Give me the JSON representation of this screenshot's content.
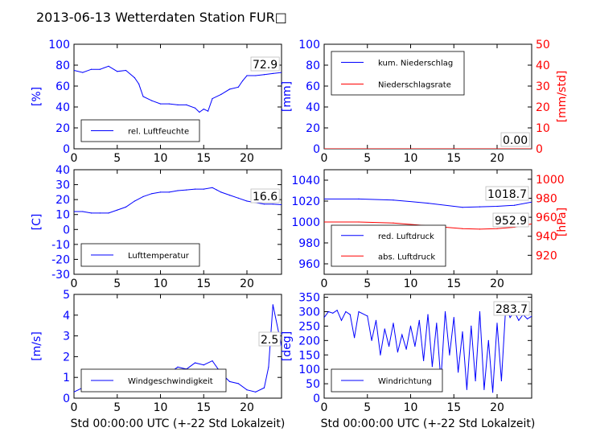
{
  "figure_title": "2013-06-13 Wetterdaten Station FUR□",
  "colors": {
    "primary": "#0000ff",
    "secondary": "#ff0000",
    "text": "#000000"
  },
  "chart_data": [
    {
      "type": "line",
      "panel": "top-left",
      "xlim": [
        0,
        24
      ],
      "xticks": [
        0,
        5,
        10,
        15,
        20
      ],
      "ylim": [
        0,
        100
      ],
      "yticks": [
        0,
        20,
        40,
        60,
        80,
        100
      ],
      "ylabel": "[%]",
      "xlabel": "",
      "legend": "lower-left",
      "annotation": "72.9",
      "series": [
        {
          "name": "rel. Luftfeuchte",
          "axis": "left",
          "color": "#0000ff",
          "x": [
            0,
            1,
            2,
            3,
            4,
            5,
            6,
            7,
            7.5,
            8,
            9,
            10,
            11,
            12,
            13,
            14,
            14.5,
            15,
            15.5,
            16,
            17,
            18,
            19,
            19.5,
            20,
            21,
            22,
            23,
            24
          ],
          "y": [
            75,
            73,
            76,
            76,
            79,
            74,
            75,
            68,
            62,
            50,
            46,
            43,
            43,
            42,
            42,
            39,
            35,
            38,
            36,
            48,
            52,
            57,
            59,
            65,
            70,
            70,
            71,
            72,
            73
          ]
        }
      ]
    },
    {
      "type": "line",
      "panel": "top-right",
      "xlim": [
        0,
        24
      ],
      "xticks": [
        0,
        5,
        10,
        15,
        20
      ],
      "ylim": [
        0,
        100
      ],
      "yticks": [
        0,
        20,
        40,
        60,
        80,
        100
      ],
      "ylabel": "[mm]",
      "y2lim": [
        0,
        50
      ],
      "y2ticks": [
        0,
        10,
        20,
        30,
        40,
        50
      ],
      "y2label": "[mm/std]",
      "xlabel": "",
      "legend": "upper-left",
      "annotation": "0.00",
      "series": [
        {
          "name": "kum. Niederschlag",
          "axis": "left",
          "color": "#0000ff",
          "x": [
            0,
            24
          ],
          "y": [
            0,
            0
          ]
        },
        {
          "name": "Niederschlagsrate",
          "axis": "right",
          "color": "#ff0000",
          "x": [
            0,
            24
          ],
          "y": [
            0,
            0
          ]
        }
      ]
    },
    {
      "type": "line",
      "panel": "middle-left",
      "xlim": [
        0,
        24
      ],
      "xticks": [
        0,
        5,
        10,
        15,
        20
      ],
      "ylim": [
        -30,
        40
      ],
      "yticks": [
        -30,
        -20,
        -10,
        0,
        10,
        20,
        30,
        40
      ],
      "ylabel": "[C]",
      "xlabel": "",
      "legend": "lower-left",
      "annotation": "16.6",
      "series": [
        {
          "name": "Lufttemperatur",
          "axis": "left",
          "color": "#0000ff",
          "x": [
            0,
            1,
            2,
            3,
            4,
            5,
            6,
            7,
            8,
            9,
            10,
            11,
            12,
            13,
            14,
            15,
            16,
            16.5,
            17,
            18,
            19,
            20,
            21,
            22,
            23,
            24
          ],
          "y": [
            12,
            12,
            11,
            11,
            11,
            13,
            15,
            19,
            22,
            24,
            25,
            25,
            26,
            26.5,
            27,
            27,
            28,
            26.5,
            25,
            23,
            21,
            19,
            18,
            17,
            17,
            16.6
          ]
        }
      ]
    },
    {
      "type": "line",
      "panel": "middle-right",
      "xlim": [
        0,
        24
      ],
      "xticks": [
        0,
        5,
        10,
        15,
        20
      ],
      "ylim": [
        950,
        1050
      ],
      "yticks": [
        960,
        980,
        1000,
        1020,
        1040
      ],
      "ylabel": "",
      "y2lim": [
        900,
        1010
      ],
      "y2ticks": [
        920,
        940,
        960,
        980,
        1000
      ],
      "y2label": "[hPa]",
      "xlabel": "",
      "legend": "lower-left",
      "annotations": [
        "1018.7",
        "952.9"
      ],
      "series": [
        {
          "name": "red. Luftdruck",
          "axis": "left",
          "color": "#0000ff",
          "x": [
            0,
            4,
            8,
            12,
            16,
            18,
            20,
            22,
            24
          ],
          "y": [
            1022,
            1022,
            1021,
            1018,
            1014,
            1014.5,
            1015,
            1016,
            1019
          ]
        },
        {
          "name": "abs. Luftdruck",
          "axis": "right",
          "color": "#ff0000",
          "x": [
            0,
            4,
            8,
            12,
            16,
            18,
            20,
            22,
            24
          ],
          "y": [
            955,
            955,
            954,
            951,
            948,
            947.5,
            948,
            949.5,
            953
          ]
        }
      ]
    },
    {
      "type": "line",
      "panel": "bottom-left",
      "xlim": [
        0,
        24
      ],
      "xticks": [
        0,
        5,
        10,
        15,
        20
      ],
      "ylim": [
        0,
        5
      ],
      "yticks": [
        0,
        1,
        2,
        3,
        4,
        5
      ],
      "ylabel": "[m/s]",
      "xlabel": "Std 00:00:00 UTC (+-22 Std Lokalzeit)",
      "legend": "lower-left",
      "annotation": "2.5",
      "series": [
        {
          "name": "Windgeschwindigkeit",
          "axis": "left",
          "color": "#0000ff",
          "x": [
            0,
            1,
            2,
            3,
            4,
            5,
            6,
            7,
            8,
            9,
            10,
            11,
            12,
            13,
            14,
            15,
            16,
            17,
            18,
            19,
            20,
            21,
            22,
            22.5,
            23,
            24
          ],
          "y": [
            0.3,
            0.5,
            0.7,
            0.6,
            0.9,
            0.7,
            0.8,
            1.0,
            0.9,
            1.1,
            1.3,
            1.2,
            1.5,
            1.4,
            1.7,
            1.6,
            1.8,
            1.2,
            0.8,
            0.7,
            0.4,
            0.3,
            0.5,
            1.5,
            4.5,
            2.5
          ]
        }
      ]
    },
    {
      "type": "line",
      "panel": "bottom-right",
      "xlim": [
        0,
        24
      ],
      "xticks": [
        0,
        5,
        10,
        15,
        20
      ],
      "ylim": [
        0,
        360
      ],
      "yticks": [
        0,
        50,
        100,
        150,
        200,
        250,
        300,
        350
      ],
      "ylabel": "[deg]",
      "xlabel": "Std 00:00:00 UTC (+-22 Std Lokalzeit)",
      "legend": "lower-left",
      "annotation": "283.7",
      "series": [
        {
          "name": "Windrichtung",
          "axis": "left",
          "color": "#0000ff",
          "x": [
            0,
            0.5,
            1,
            1.5,
            2,
            2.5,
            3,
            3.5,
            4,
            5,
            5.5,
            6,
            6.5,
            7,
            7.5,
            8,
            8.5,
            9,
            9.5,
            10,
            10.5,
            11,
            11.5,
            12,
            12.5,
            13,
            13.5,
            14,
            14.5,
            15,
            15.5,
            16,
            16.5,
            17,
            17.5,
            18,
            18.5,
            19,
            19.5,
            20,
            20.5,
            21,
            21.5,
            22,
            22.5,
            23,
            23.5,
            24
          ],
          "y": [
            280,
            300,
            295,
            305,
            270,
            300,
            290,
            210,
            300,
            285,
            200,
            270,
            150,
            240,
            180,
            260,
            160,
            220,
            170,
            250,
            180,
            270,
            130,
            290,
            110,
            260,
            60,
            300,
            150,
            280,
            90,
            230,
            30,
            250,
            60,
            300,
            30,
            200,
            20,
            260,
            60,
            320,
            280,
            300,
            270,
            290,
            275,
            284
          ]
        }
      ]
    }
  ]
}
